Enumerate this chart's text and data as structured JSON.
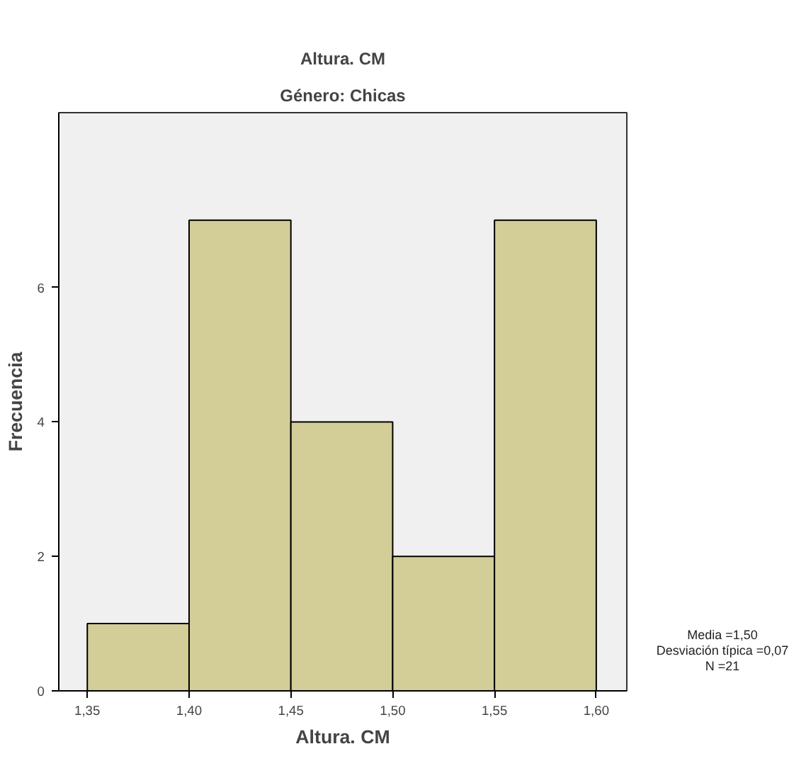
{
  "chart_data": {
    "type": "histogram",
    "title": "Altura. CM",
    "subtitle": "Género: Chicas",
    "xlabel": "Altura. CM",
    "ylabel": "Frecuencia",
    "bins": [
      1.35,
      1.4,
      1.45,
      1.5,
      1.55,
      1.6
    ],
    "values": [
      1,
      7,
      4,
      2,
      7
    ],
    "color": "#d3ce97",
    "xlim": [
      1.336,
      1.615
    ],
    "ylim": [
      0,
      8.6
    ],
    "xticks": [
      {
        "value": 1.35,
        "label": "1,35"
      },
      {
        "value": 1.4,
        "label": "1,40"
      },
      {
        "value": 1.45,
        "label": "1,45"
      },
      {
        "value": 1.5,
        "label": "1,50"
      },
      {
        "value": 1.55,
        "label": "1,55"
      },
      {
        "value": 1.6,
        "label": "1,60"
      }
    ],
    "yticks": [
      0,
      2,
      4,
      6
    ],
    "annotations": [
      "Media =1,50",
      "Desviación típica =0,07",
      "N =21"
    ],
    "grid": false
  }
}
